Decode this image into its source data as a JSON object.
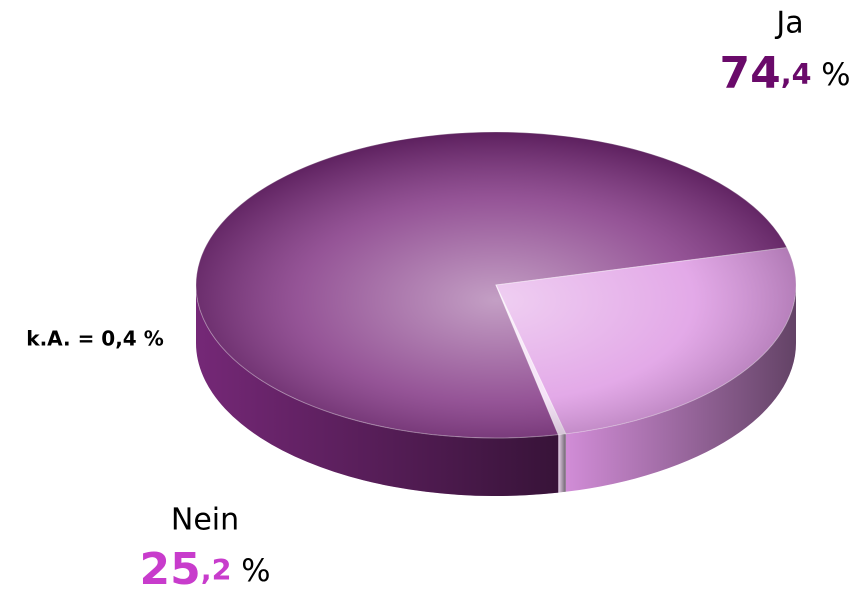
{
  "chart_data": {
    "type": "pie3d",
    "categories": [
      "Ja",
      "Nein",
      null
    ],
    "values": [
      74.4,
      25.2,
      0.4
    ],
    "value_labels": [
      "74,4 %",
      "25,2 %",
      "k.A. = 0,4 %"
    ],
    "colors": [
      "#7b2a7d",
      "#dc94e2",
      "#f3dcf5"
    ],
    "value_label_colors": [
      "#6a0a6a",
      "#c83ccc",
      "#000000"
    ]
  }
}
